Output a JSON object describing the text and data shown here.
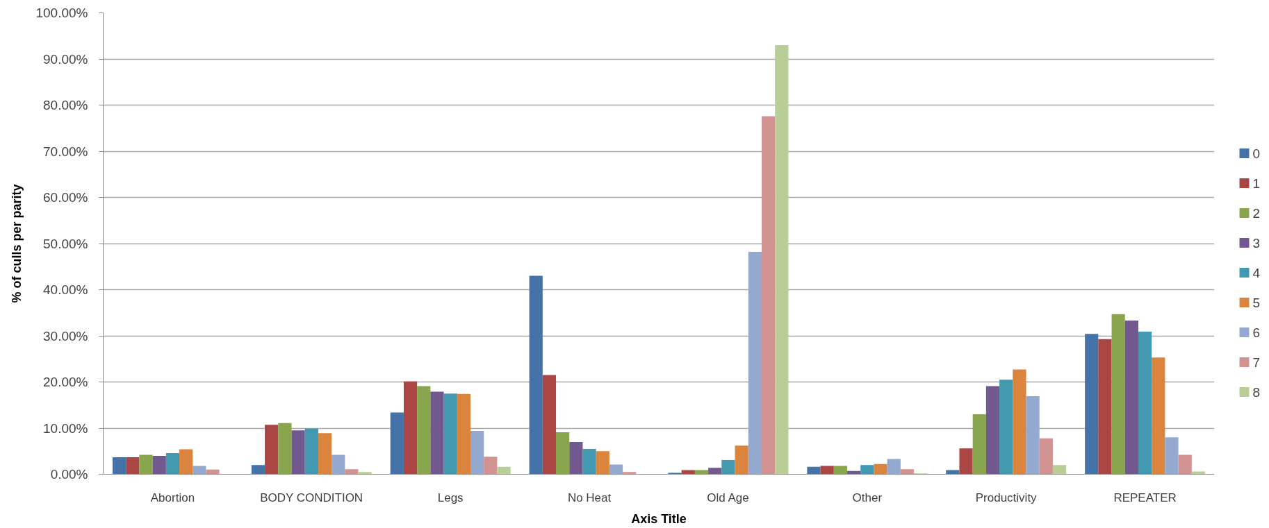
{
  "chart_data": {
    "type": "bar",
    "xlabel": "Axis Title",
    "ylabel": "% of culls per parity",
    "categories": [
      "Abortion",
      "BODY CONDITION",
      "Legs",
      "No Heat",
      "Old Age",
      "Other",
      "Productivity",
      "REPEATER"
    ],
    "series": [
      {
        "name": "0",
        "color": "#4572a7",
        "values": [
          3.7,
          2.0,
          13.4,
          43.0,
          0.3,
          1.6,
          0.9,
          30.4
        ]
      },
      {
        "name": "1",
        "color": "#aa4643",
        "values": [
          3.7,
          10.7,
          20.1,
          21.5,
          0.9,
          1.8,
          5.6,
          29.3
        ]
      },
      {
        "name": "2",
        "color": "#89a54e",
        "values": [
          4.2,
          11.1,
          19.1,
          9.1,
          0.9,
          1.8,
          13.0,
          34.7
        ]
      },
      {
        "name": "3",
        "color": "#71588f",
        "values": [
          4.0,
          9.5,
          17.9,
          7.0,
          1.4,
          0.7,
          19.1,
          33.3
        ]
      },
      {
        "name": "4",
        "color": "#4198af",
        "values": [
          4.6,
          9.9,
          17.5,
          5.5,
          3.1,
          2.0,
          20.5,
          30.9
        ]
      },
      {
        "name": "5",
        "color": "#db843d",
        "values": [
          5.4,
          8.9,
          17.4,
          5.0,
          6.2,
          2.2,
          22.7,
          25.3
        ]
      },
      {
        "name": "6",
        "color": "#93a9cf",
        "values": [
          1.8,
          4.2,
          9.4,
          2.1,
          48.2,
          3.3,
          16.9,
          8.0
        ]
      },
      {
        "name": "7",
        "color": "#d19392",
        "values": [
          1.0,
          1.1,
          3.8,
          0.5,
          77.6,
          1.1,
          7.8,
          4.2
        ]
      },
      {
        "name": "8",
        "color": "#b9cd96",
        "values": [
          null,
          0.5,
          1.6,
          null,
          93.0,
          0.2,
          2.0,
          0.6
        ]
      }
    ],
    "ylim": [
      0,
      100
    ],
    "yticks": [
      {
        "value": 0,
        "label": "0.00%"
      },
      {
        "value": 10,
        "label": "10.00%"
      },
      {
        "value": 20,
        "label": "20.00%"
      },
      {
        "value": 30,
        "label": "30.00%"
      },
      {
        "value": 40,
        "label": "40.00%"
      },
      {
        "value": 50,
        "label": "50.00%"
      },
      {
        "value": 60,
        "label": "60.00%"
      },
      {
        "value": 70,
        "label": "70.00%"
      },
      {
        "value": 80,
        "label": "80.00%"
      },
      {
        "value": 90,
        "label": "90.00%"
      },
      {
        "value": 100,
        "label": "100.00%"
      }
    ],
    "grid": "y",
    "legend": "right"
  }
}
